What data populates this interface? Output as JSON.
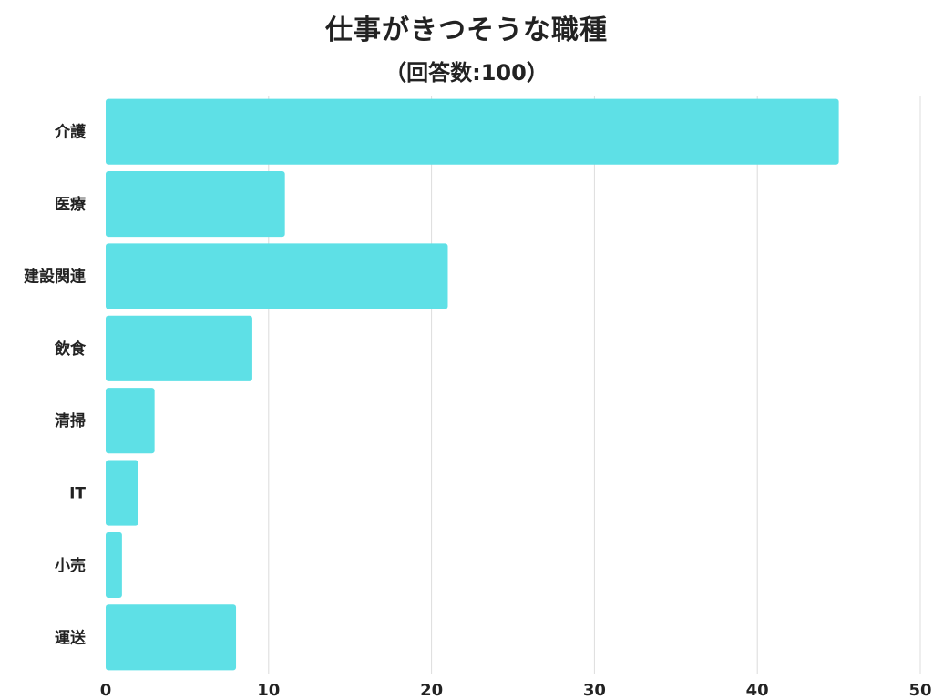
{
  "chart_data": {
    "type": "bar",
    "orientation": "horizontal",
    "title": "仕事がきつそうな職種",
    "subtitle": "（回答数:100）",
    "categories": [
      "介護",
      "医療",
      "建設関連",
      "飲食",
      "清掃",
      "IT",
      "小売",
      "運送"
    ],
    "values": [
      45,
      11,
      21,
      9,
      3,
      2,
      1,
      8
    ],
    "xlim": [
      0,
      50
    ],
    "xticks": [
      "0",
      "10",
      "20",
      "30",
      "40",
      "50"
    ],
    "grid": true,
    "bar_color": "#5ee0e6"
  }
}
